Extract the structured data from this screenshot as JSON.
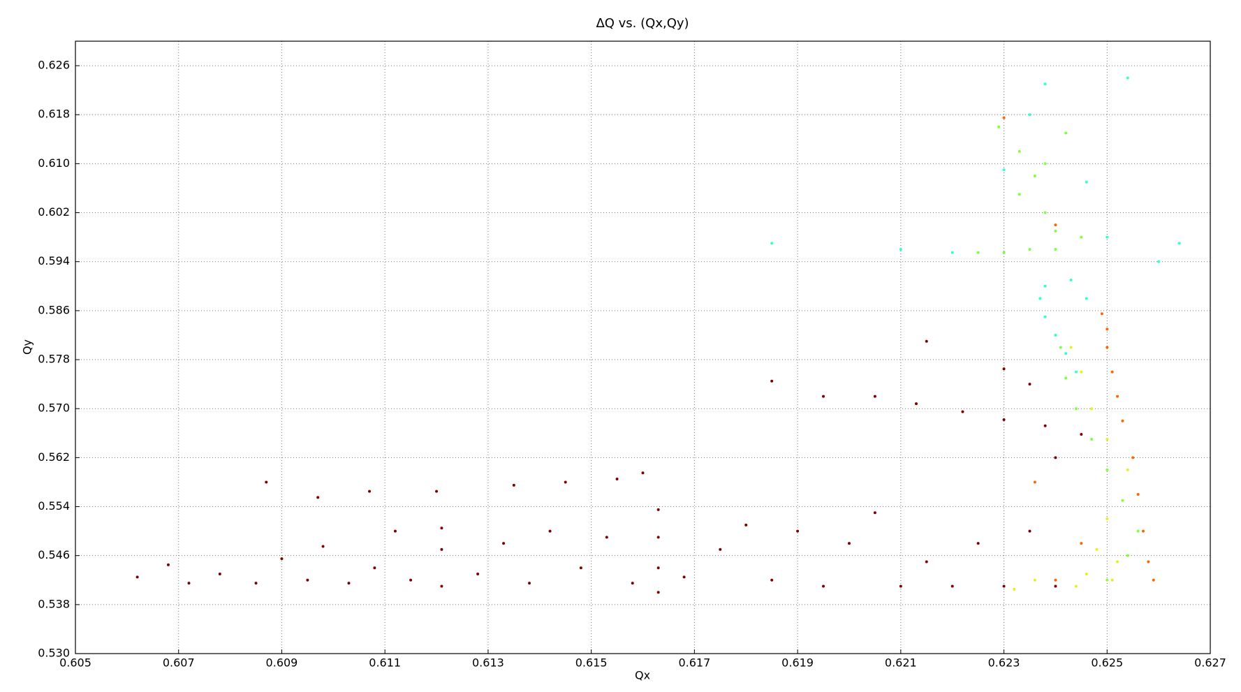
{
  "chart_data": {
    "type": "scatter",
    "title": "ΔQ vs. (Qx,Qy)",
    "x_label": "Qx",
    "y_label": "Qy",
    "grid": true,
    "xlim": [
      0.605,
      0.627
    ],
    "ylim": [
      0.53,
      0.63
    ],
    "xticks": [
      0.605,
      0.607,
      0.609,
      0.611,
      0.613,
      0.615,
      0.617,
      0.619,
      0.621,
      0.623,
      0.625,
      0.627
    ],
    "yticks": [
      {
        "value": 0.53,
        "label": "0.530"
      },
      0.538,
      0.546,
      0.554,
      0.562,
      {
        "value": 0.57,
        "label": "0.570"
      },
      0.578,
      0.586,
      0.594,
      0.602,
      {
        "value": 0.61,
        "label": "0.610"
      },
      0.618,
      0.626
    ],
    "series": [
      {
        "color": "#800000",
        "x": [
          0.6062,
          0.6068,
          0.6072,
          0.6078,
          0.6085,
          0.609,
          0.6095,
          0.6098,
          0.6103,
          0.6108,
          0.6112,
          0.6115,
          0.6121,
          0.6121,
          0.6121,
          0.6128,
          0.6133,
          0.6138,
          0.6142,
          0.6148,
          0.6153,
          0.6158,
          0.6163,
          0.6163,
          0.6163,
          0.6163,
          0.6168,
          0.6175,
          0.618,
          0.6185,
          0.619,
          0.6195,
          0.62,
          0.6205,
          0.621,
          0.6215,
          0.622,
          0.6225,
          0.623,
          0.6235,
          0.624,
          0.6087,
          0.6097,
          0.6107,
          0.612,
          0.6135,
          0.6145,
          0.6155,
          0.616,
          0.6205,
          0.6213,
          0.6222,
          0.623,
          0.6238,
          0.6245,
          0.6235,
          0.623,
          0.624,
          0.6185,
          0.6215,
          0.6195
        ],
        "values": [
          0.5425,
          0.5445,
          0.5415,
          0.543,
          0.5415,
          0.5455,
          0.542,
          0.5475,
          0.5415,
          0.544,
          0.55,
          0.542,
          0.541,
          0.547,
          0.5505,
          0.543,
          0.548,
          0.5415,
          0.55,
          0.544,
          0.549,
          0.5415,
          0.54,
          0.544,
          0.549,
          0.5535,
          0.5425,
          0.547,
          0.551,
          0.542,
          0.55,
          0.541,
          0.548,
          0.553,
          0.541,
          0.545,
          0.541,
          0.548,
          0.541,
          0.55,
          0.541,
          0.558,
          0.5555,
          0.5565,
          0.5565,
          0.5575,
          0.558,
          0.5585,
          0.5595,
          0.572,
          0.5708,
          0.5695,
          0.5682,
          0.5672,
          0.5658,
          0.574,
          0.5765,
          0.562,
          0.5745,
          0.581,
          0.572
        ]
      },
      {
        "color": "#ff6600",
        "x": [
          0.6249,
          0.625,
          0.625,
          0.6251,
          0.6252,
          0.6253,
          0.6255,
          0.6256,
          0.6257,
          0.6258,
          0.6259,
          0.6245,
          0.624,
          0.6236,
          0.624,
          0.623
        ],
        "values": [
          0.5855,
          0.583,
          0.58,
          0.576,
          0.572,
          0.568,
          0.562,
          0.556,
          0.55,
          0.545,
          0.542,
          0.548,
          0.542,
          0.558,
          0.6,
          0.6175
        ]
      },
      {
        "color": "#e6f020",
        "x": [
          0.6246,
          0.6248,
          0.625,
          0.6252,
          0.6244,
          0.6236,
          0.6232,
          0.6254,
          0.625,
          0.6247,
          0.6245,
          0.6243,
          0.6251
        ],
        "values": [
          0.543,
          0.547,
          0.552,
          0.545,
          0.541,
          0.542,
          0.5405,
          0.56,
          0.565,
          0.57,
          0.576,
          0.58,
          0.542
        ]
      },
      {
        "color": "#80ff40",
        "x": [
          0.625,
          0.6254,
          0.6256,
          0.6253,
          0.625,
          0.6247,
          0.6244,
          0.6242,
          0.6241,
          0.6229,
          0.6233,
          0.6236,
          0.6233,
          0.6238,
          0.624,
          0.6235,
          0.623,
          0.624,
          0.6225,
          0.6245,
          0.6238,
          0.6242
        ],
        "values": [
          0.542,
          0.546,
          0.55,
          0.555,
          0.56,
          0.565,
          0.57,
          0.575,
          0.58,
          0.616,
          0.612,
          0.608,
          0.605,
          0.602,
          0.599,
          0.596,
          0.5955,
          0.596,
          0.5955,
          0.598,
          0.61,
          0.615
        ]
      },
      {
        "color": "#33ffcc",
        "x": [
          0.6238,
          0.6237,
          0.6238,
          0.624,
          0.6242,
          0.6244,
          0.6243,
          0.6246,
          0.622,
          0.621,
          0.6185,
          0.626,
          0.6264,
          0.625,
          0.6254,
          0.6238,
          0.6246,
          0.623,
          0.6235
        ],
        "values": [
          0.59,
          0.588,
          0.585,
          0.582,
          0.579,
          0.576,
          0.591,
          0.588,
          0.5955,
          0.596,
          0.597,
          0.594,
          0.597,
          0.598,
          0.624,
          0.623,
          0.607,
          0.609,
          0.618
        ]
      }
    ]
  }
}
